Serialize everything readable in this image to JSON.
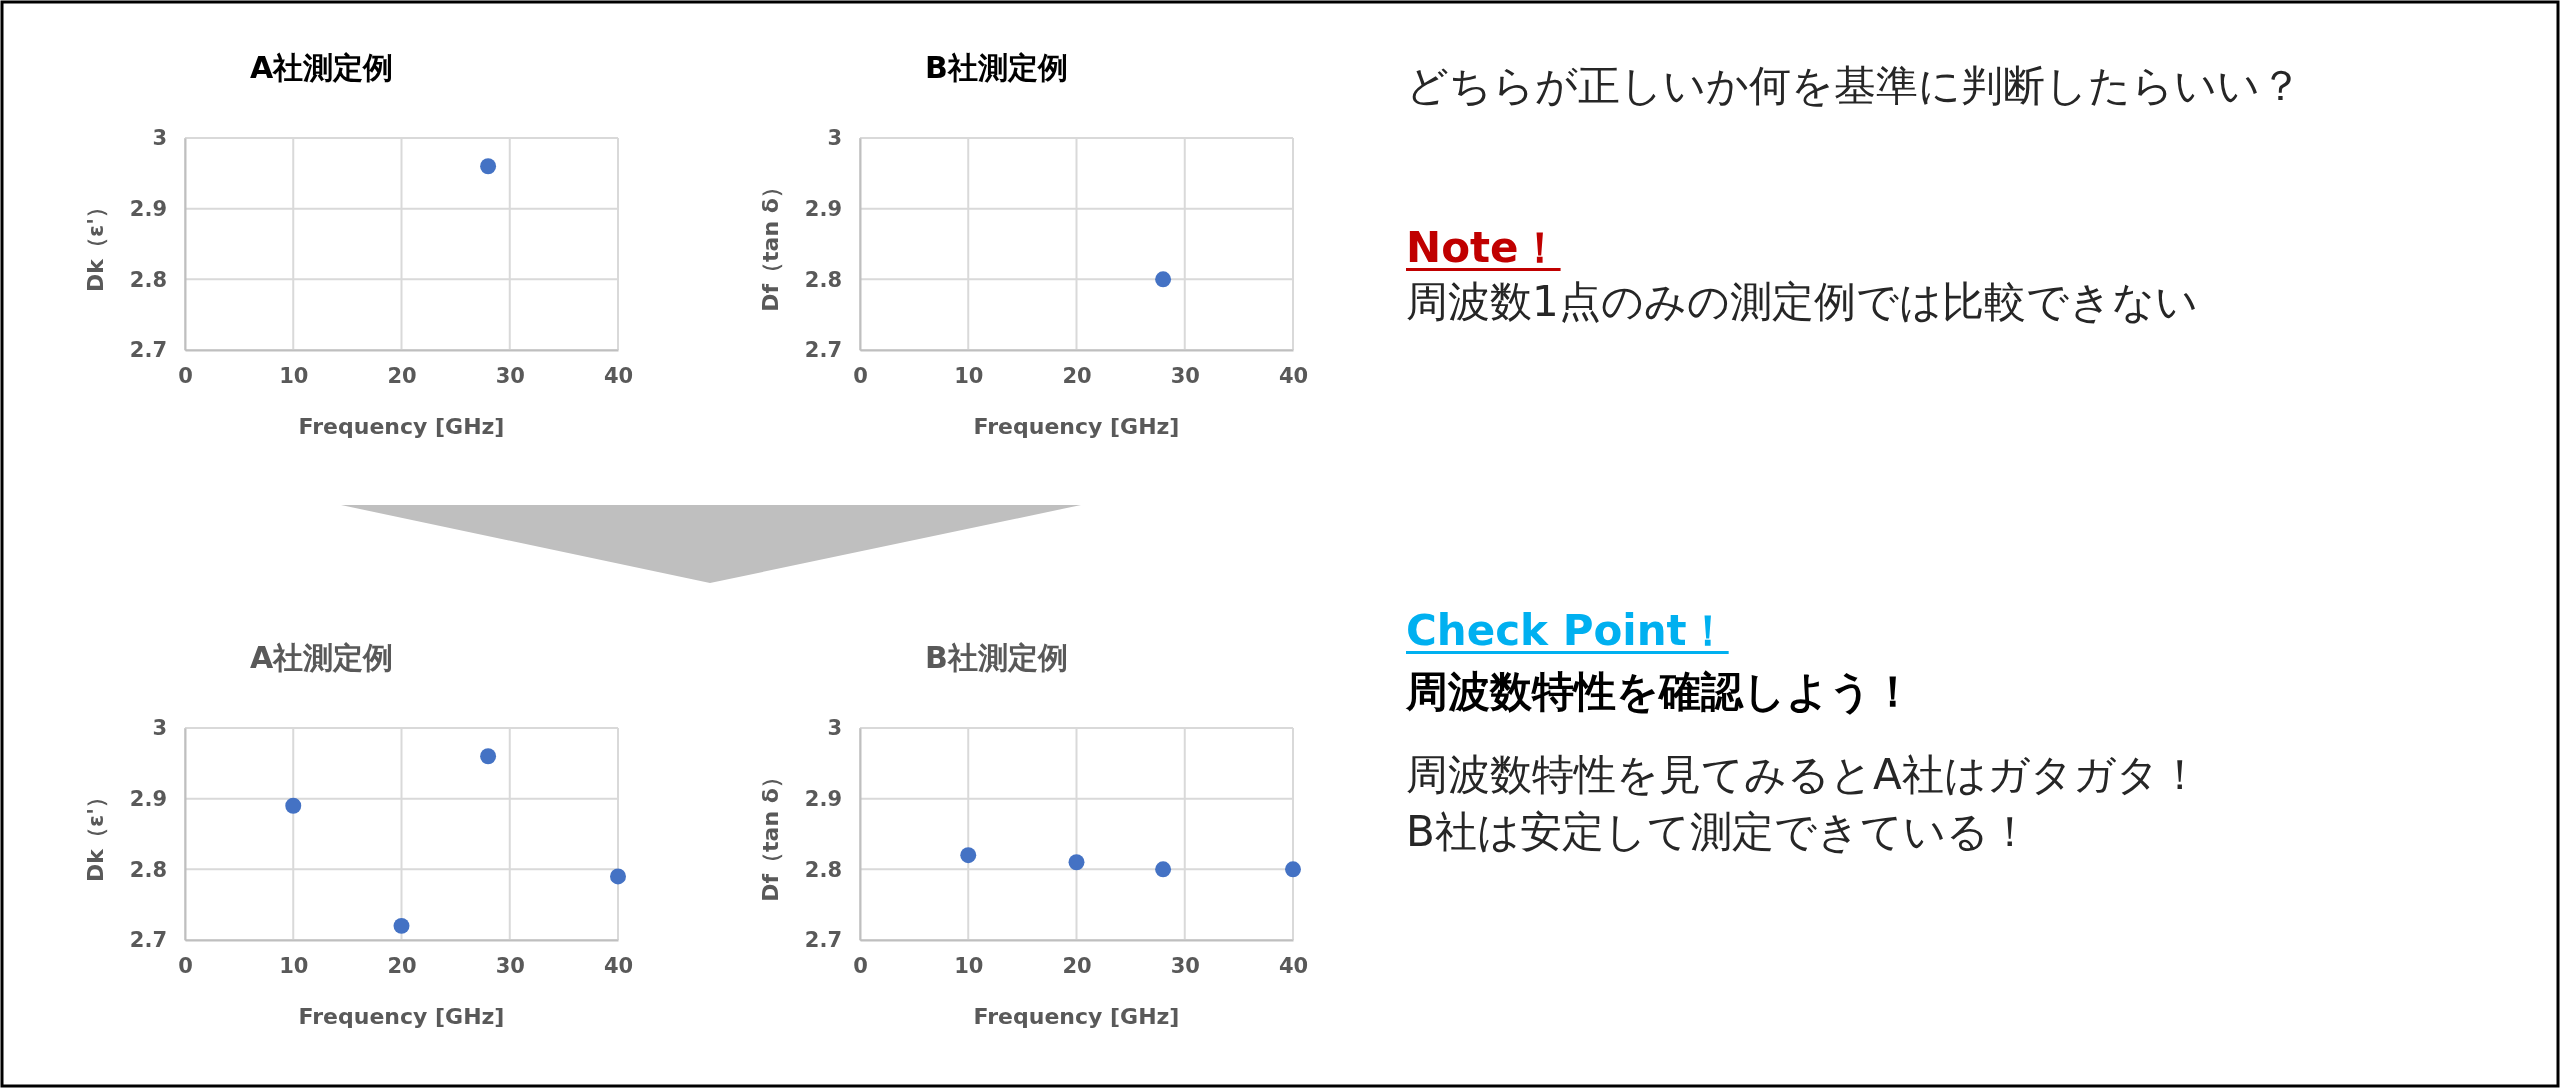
{
  "chart_data": [
    {
      "type": "scatter",
      "title": "A社測定例",
      "xlabel": "Frequency [GHz]",
      "ylabel": "Dk（ε'）",
      "x": [
        28
      ],
      "series": [
        {
          "color": "#4472c4",
          "values": [
            2.96
          ]
        }
      ],
      "xlim": [
        0,
        40
      ],
      "xticks": [
        0,
        10,
        20,
        30,
        40
      ],
      "ylim": [
        2.7,
        3
      ],
      "yticks": [
        2.7,
        2.8,
        2.9,
        3
      ],
      "grid": true,
      "marker": "circle"
    },
    {
      "type": "scatter",
      "title": "B社測定例",
      "xlabel": "Frequency [GHz]",
      "ylabel": "Df（tan δ）",
      "x": [
        28
      ],
      "series": [
        {
          "color": "#4472c4",
          "values": [
            2.8
          ]
        }
      ],
      "xlim": [
        0,
        40
      ],
      "xticks": [
        0,
        10,
        20,
        30,
        40
      ],
      "ylim": [
        2.7,
        3
      ],
      "yticks": [
        2.7,
        2.8,
        2.9,
        3
      ],
      "grid": true,
      "marker": "circle"
    },
    {
      "type": "other",
      "annotations": [
        "どちらが正しいか何を基準に判断したらいい？",
        "Note！",
        "周波数1点のみの測定例では比較できない",
        "Check Point！",
        "周波数特性を確認しよう！",
        "周波数特性を見てみるとA社はガタガタ！",
        "B社は安定して測定できている！"
      ]
    },
    {
      "type": "scatter",
      "title": "A社測定例",
      "xlabel": "Frequency [GHz]",
      "ylabel": "Dk（ε'）",
      "x": [
        10,
        20,
        28,
        40
      ],
      "series": [
        {
          "color": "#4472c4",
          "values": [
            2.89,
            2.72,
            2.96,
            2.79
          ]
        }
      ],
      "xlim": [
        0,
        40
      ],
      "xticks": [
        0,
        10,
        20,
        30,
        40
      ],
      "ylim": [
        2.7,
        3
      ],
      "yticks": [
        2.7,
        2.8,
        2.9,
        3
      ],
      "grid": true,
      "marker": "circle"
    },
    {
      "type": "scatter",
      "title": "B社測定例",
      "xlabel": "Frequency [GHz]",
      "ylabel": "Df（tan δ）",
      "x": [
        10,
        20,
        28,
        40
      ],
      "series": [
        {
          "color": "#4472c4",
          "values": [
            2.82,
            2.81,
            2.8,
            2.8
          ]
        }
      ],
      "xlim": [
        0,
        40
      ],
      "xticks": [
        0,
        10,
        20,
        30,
        40
      ],
      "ylim": [
        2.7,
        3
      ],
      "yticks": [
        2.7,
        2.8,
        2.9,
        3
      ],
      "grid": true,
      "marker": "circle"
    }
  ]
}
